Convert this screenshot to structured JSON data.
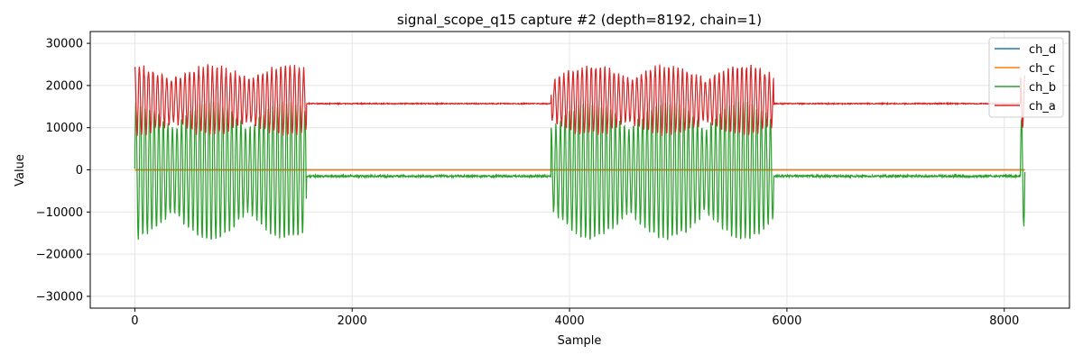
{
  "chart_data": {
    "type": "line",
    "title": "signal_scope_q15 capture #2 (depth=8192, chain=1)",
    "xlabel": "Sample",
    "ylabel": "Value",
    "xlim": [
      -410,
      8600
    ],
    "ylim": [
      -32800,
      32800
    ],
    "xticks": [
      0,
      2000,
      4000,
      6000,
      8000
    ],
    "yticks": [
      -30000,
      -20000,
      -10000,
      0,
      10000,
      20000,
      30000
    ],
    "grid": true,
    "legend_position": "top-right",
    "depth": 8192,
    "bursts": [
      [
        0,
        1580
      ],
      [
        3830,
        5880
      ],
      [
        8150,
        8192
      ]
    ],
    "oscillation_period_samples": 42,
    "series": [
      {
        "name": "ch_d",
        "color": "#1f77b4",
        "baseline": 0,
        "burst_min": 0,
        "burst_max": 0,
        "noise": 0
      },
      {
        "name": "ch_c",
        "color": "#ff7f0e",
        "baseline": 0,
        "burst_min": 0,
        "burst_max": 0,
        "noise": 0
      },
      {
        "name": "ch_b",
        "color": "#2ca02c",
        "baseline": -1500,
        "burst_min": -16300,
        "burst_max": 16000,
        "noise": 250
      },
      {
        "name": "ch_a",
        "color": "#d62728",
        "baseline": 15700,
        "burst_min": 8400,
        "burst_max": 24500,
        "noise": 120
      }
    ]
  }
}
